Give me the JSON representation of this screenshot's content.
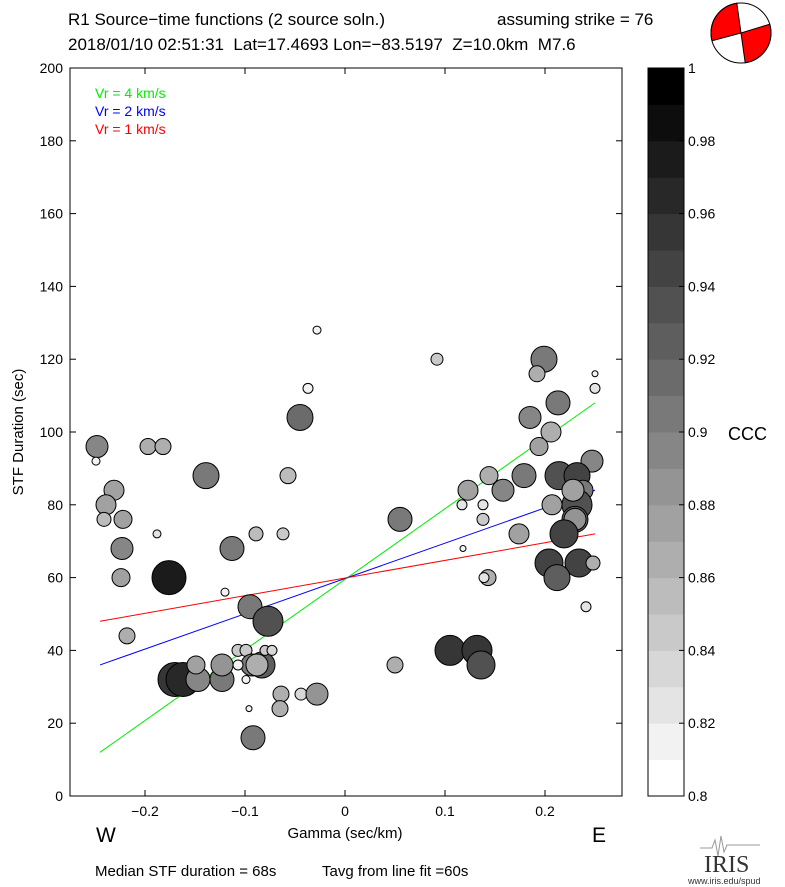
{
  "header": {
    "title": "R1 Source−time functions (2 source soln.)",
    "strike_text": "assuming strike = 76",
    "event_line": "2018/01/10 02:51:31  Lat=17.4693 Lon=−83.5197  Z=10.0km  M7.6"
  },
  "footer": {
    "median_text": "Median STF duration = 68s",
    "tavg_text": "Tavg from line fit =60s",
    "logo_text": "IRIS",
    "logo_url_text": "www.iris.edu/spud"
  },
  "direction_labels": {
    "west": "W",
    "east": "E"
  },
  "colorbar": {
    "label": "CCC",
    "range": [
      0.8,
      1.0
    ],
    "levels": 20,
    "tick_labels": [
      "0.8",
      "0.82",
      "0.84",
      "0.86",
      "0.88",
      "0.9",
      "0.92",
      "0.94",
      "0.96",
      "0.98",
      "1"
    ],
    "tick_values": [
      0.8,
      0.82,
      0.84,
      0.86,
      0.88,
      0.9,
      0.92,
      0.94,
      0.96,
      0.98,
      1.0
    ],
    "colormap": "white-to-black"
  },
  "beachball": {
    "fill": "#ff0000",
    "background": "#ffffff"
  },
  "chart_data": {
    "type": "scatter",
    "xlabel": "Gamma (sec/km)",
    "ylabel": "STF Duration (sec)",
    "xlim": [
      -0.275,
      0.277
    ],
    "ylim": [
      0,
      200
    ],
    "x_ticks": [
      -0.2,
      -0.1,
      0,
      0.1,
      0.2
    ],
    "x_tick_labels": [
      "−0.2",
      "−0.1",
      "0",
      "0.1",
      "0.2"
    ],
    "y_ticks": [
      0,
      20,
      40,
      60,
      80,
      100,
      120,
      140,
      160,
      180,
      200
    ],
    "y_tick_labels": [
      "0",
      "20",
      "40",
      "60",
      "80",
      "100",
      "120",
      "140",
      "160",
      "180",
      "200"
    ],
    "grid": false,
    "legend_position": "top-left",
    "lines": [
      {
        "name": "Vr = 4 km/s",
        "color": "#00ee00",
        "x": [
          -0.245,
          0.25
        ],
        "y": [
          12,
          108
        ]
      },
      {
        "name": "Vr = 2 km/s",
        "color": "#0000ff",
        "x": [
          -0.245,
          0.25
        ],
        "y": [
          36,
          84
        ]
      },
      {
        "name": "Vr = 1 km/s",
        "color": "#ff0000",
        "x": [
          -0.245,
          0.25
        ],
        "y": [
          48,
          72
        ]
      }
    ],
    "points_fields": [
      "gamma",
      "duration",
      "ccc",
      "relative_size"
    ],
    "points": [
      [
        -0.248,
        96,
        0.89,
        11
      ],
      [
        -0.249,
        92,
        0.81,
        4
      ],
      [
        -0.197,
        96,
        0.86,
        8
      ],
      [
        -0.182,
        96,
        0.86,
        8
      ],
      [
        -0.231,
        84,
        0.87,
        10
      ],
      [
        -0.239,
        80,
        0.87,
        10
      ],
      [
        -0.241,
        76,
        0.85,
        7
      ],
      [
        -0.222,
        76,
        0.87,
        9
      ],
      [
        -0.223,
        68,
        0.89,
        11
      ],
      [
        -0.224,
        60,
        0.87,
        9
      ],
      [
        -0.218,
        44,
        0.86,
        8
      ],
      [
        -0.188,
        72,
        0.82,
        4
      ],
      [
        -0.176,
        60,
        0.97,
        17
      ],
      [
        -0.139,
        88,
        0.9,
        13
      ],
      [
        -0.113,
        68,
        0.9,
        12
      ],
      [
        -0.12,
        56,
        0.81,
        4
      ],
      [
        -0.089,
        72,
        0.85,
        7
      ],
      [
        -0.057,
        88,
        0.85,
        8
      ],
      [
        -0.062,
        72,
        0.84,
        6
      ],
      [
        -0.045,
        104,
        0.91,
        13
      ],
      [
        -0.037,
        112,
        0.81,
        5
      ],
      [
        -0.028,
        128,
        0.81,
        4
      ],
      [
        -0.095,
        52,
        0.9,
        12
      ],
      [
        -0.077,
        48,
        0.93,
        15
      ],
      [
        -0.17,
        32,
        0.95,
        17
      ],
      [
        -0.162,
        32,
        0.96,
        17
      ],
      [
        -0.147,
        32,
        0.89,
        12
      ],
      [
        -0.123,
        32,
        0.9,
        12
      ],
      [
        -0.149,
        36,
        0.87,
        9
      ],
      [
        -0.123,
        36,
        0.88,
        11
      ],
      [
        -0.107,
        40,
        0.84,
        6
      ],
      [
        -0.099,
        40,
        0.84,
        6
      ],
      [
        -0.083,
        36,
        0.92,
        13
      ],
      [
        -0.093,
        36,
        0.9,
        11
      ],
      [
        -0.088,
        36,
        0.86,
        11
      ],
      [
        -0.107,
        36,
        0.81,
        5
      ],
      [
        -0.099,
        32,
        0.81,
        4
      ],
      [
        -0.08,
        40,
        0.84,
        5
      ],
      [
        -0.073,
        40,
        0.83,
        5
      ],
      [
        -0.064,
        28,
        0.86,
        8
      ],
      [
        -0.065,
        24,
        0.86,
        8
      ],
      [
        -0.096,
        24,
        0.81,
        3
      ],
      [
        -0.092,
        16,
        0.9,
        12
      ],
      [
        -0.044,
        28,
        0.83,
        6
      ],
      [
        -0.028,
        28,
        0.88,
        11
      ],
      [
        0.092,
        120,
        0.84,
        6
      ],
      [
        0.199,
        120,
        0.9,
        13
      ],
      [
        0.192,
        116,
        0.86,
        8
      ],
      [
        0.25,
        116,
        0.81,
        3
      ],
      [
        0.25,
        112,
        0.82,
        5
      ],
      [
        0.213,
        108,
        0.9,
        12
      ],
      [
        0.185,
        104,
        0.89,
        11
      ],
      [
        0.206,
        100,
        0.86,
        10
      ],
      [
        0.194,
        96,
        0.87,
        9
      ],
      [
        0.247,
        92,
        0.89,
        11
      ],
      [
        0.179,
        88,
        0.9,
        12
      ],
      [
        0.158,
        84,
        0.89,
        11
      ],
      [
        0.144,
        88,
        0.86,
        9
      ],
      [
        0.123,
        84,
        0.87,
        10
      ],
      [
        0.117,
        80,
        0.82,
        5
      ],
      [
        0.138,
        80,
        0.82,
        5
      ],
      [
        0.138,
        76,
        0.84,
        6
      ],
      [
        0.055,
        76,
        0.9,
        12
      ],
      [
        0.174,
        72,
        0.87,
        10
      ],
      [
        0.118,
        68,
        0.81,
        3
      ],
      [
        0.143,
        60,
        0.86,
        8
      ],
      [
        0.139,
        60,
        0.82,
        5
      ],
      [
        0.214,
        88,
        0.93,
        14
      ],
      [
        0.232,
        88,
        0.94,
        13
      ],
      [
        0.207,
        80,
        0.87,
        10
      ],
      [
        0.238,
        84,
        0.9,
        10
      ],
      [
        0.232,
        80,
        0.93,
        15
      ],
      [
        0.228,
        84,
        0.87,
        11
      ],
      [
        0.23,
        76,
        0.92,
        13
      ],
      [
        0.23,
        76,
        0.88,
        11
      ],
      [
        0.219,
        72,
        0.94,
        14
      ],
      [
        0.204,
        64,
        0.94,
        14
      ],
      [
        0.234,
        64,
        0.94,
        14
      ],
      [
        0.212,
        60,
        0.92,
        13
      ],
      [
        0.248,
        64,
        0.86,
        7
      ],
      [
        0.241,
        52,
        0.82,
        5
      ],
      [
        0.105,
        40,
        0.95,
        15
      ],
      [
        0.132,
        40,
        0.95,
        15
      ],
      [
        0.136,
        36,
        0.93,
        14
      ],
      [
        0.05,
        36,
        0.86,
        8
      ]
    ]
  }
}
